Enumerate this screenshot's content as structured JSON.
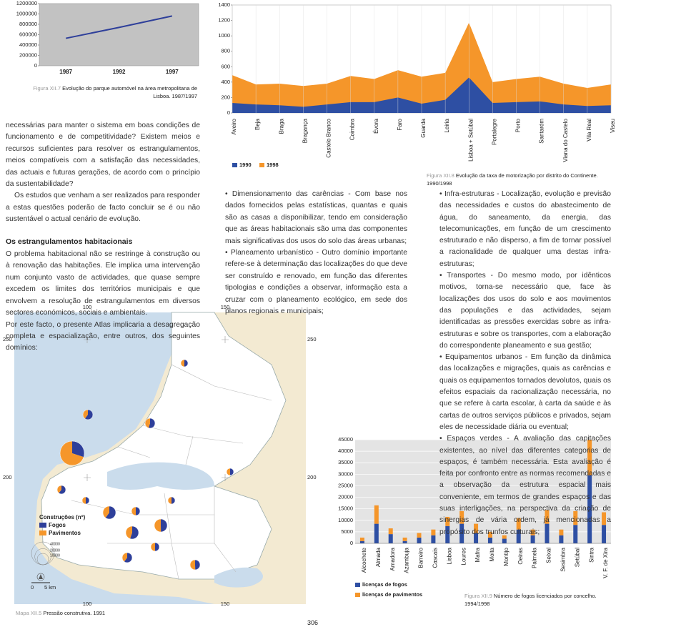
{
  "chart_data": [
    {
      "type": "line",
      "categories": [
        "1987",
        "1992",
        "1997"
      ],
      "series": [
        {
          "color": "#2e3f9a",
          "values": [
            530000,
            740000,
            960000
          ]
        }
      ],
      "ylim": [
        0,
        1200000
      ],
      "yticks": [
        0,
        200000,
        400000,
        600000,
        800000,
        1000000,
        1200000
      ],
      "background": "#c2c2c2",
      "caption": {
        "label": "Figura XII.7",
        "text": "Evolução do parque automóvel na área metropolitana de Lisboa. 1987/1997"
      }
    },
    {
      "type": "area",
      "categories": [
        "Aveiro",
        "Beja",
        "Braga",
        "Bragança",
        "Castelo Branco",
        "Coimbra",
        "Évora",
        "Faro",
        "Guarda",
        "Leiria",
        "Lisboa + Setúbal",
        "Portalegre",
        "Porto",
        "Santarém",
        "Viana do Castelo",
        "Vila Real",
        "Viseu"
      ],
      "series": [
        {
          "name": "1990",
          "color": "#2e4fa3",
          "values": [
            130,
            110,
            100,
            80,
            110,
            140,
            140,
            200,
            120,
            170,
            460,
            130,
            140,
            150,
            110,
            90,
            100
          ]
        },
        {
          "name": "1998",
          "color": "#f5962a",
          "values": [
            490,
            370,
            380,
            350,
            380,
            480,
            440,
            555,
            470,
            520,
            1170,
            400,
            440,
            470,
            380,
            325,
            370
          ]
        }
      ],
      "ylim": [
        0,
        1400
      ],
      "yticks": [
        0,
        200,
        400,
        600,
        800,
        1000,
        1200,
        1400
      ],
      "legend": "bottom-left",
      "caption": {
        "label": "Figura XII.8",
        "text": "Evolução da taxa de motorização por distrito do Continente. 1990/1998"
      }
    },
    {
      "type": "stacked-bar",
      "categories": [
        "Alcochete",
        "Almada",
        "Amadora",
        "Azambuja",
        "Barreiro",
        "Cascais",
        "Lisboa",
        "Loures",
        "Mafra",
        "Moita",
        "Montijo",
        "Oeiras",
        "Palmela",
        "Seixal",
        "Sesimbra",
        "Setúbal",
        "Sintra",
        "V. F. de Xira"
      ],
      "series": [
        {
          "name": "licenças de fogos",
          "color": "#2e4fa3",
          "values": [
            1000,
            8500,
            4000,
            1000,
            2500,
            3500,
            7500,
            8500,
            4500,
            2500,
            2000,
            6000,
            3500,
            8500,
            3500,
            8000,
            29500,
            8000
          ]
        },
        {
          "name": "licenças de pavimentos",
          "color": "#f5962a",
          "values": [
            1500,
            8000,
            2500,
            1500,
            2000,
            2500,
            4000,
            5500,
            4000,
            2500,
            1500,
            5000,
            2500,
            6000,
            2500,
            6000,
            15500,
            5500
          ]
        }
      ],
      "ylim": [
        0,
        45000
      ],
      "yticks": [
        0,
        5000,
        10000,
        15000,
        20000,
        25000,
        30000,
        35000,
        40000,
        45000
      ],
      "grid": true,
      "legend": "bottom-left",
      "caption": {
        "label": "Figura XII.9",
        "text": "Número de fogos licenciados por concelho. 1994/1998"
      }
    }
  ],
  "body": {
    "col1a": [
      "necessárias para manter o sistema em boas condições de funcionamento e de competitividade? Existem meios e recursos suficientes para resolver os estrangulamentos, meios compatíveis com a satisfação das necessidades, das actuais e futuras gerações, de acordo com o princípio da sustentabilidade?",
      "Os estudos que venham a ser realizados para responder a estas questões poderão de facto concluir se é ou não sustentável o actual cenário de evolução."
    ],
    "heading": "Os estrangulamentos habitacionais",
    "col1b": [
      "O problema habitacional não se restringe à construção ou à renovação das habitações. Ele implica uma intervenção num conjunto vasto de actividades, que quase sempre excedem os limites dos territórios municipais e que envolvem a resolução de estrangulamentos em diversos sectores económicos, sociais e ambientais.",
      "Por este facto, o presente Atlas implicaria a desagregação completa e espacialização, entre outros, dos seguintes domínios:"
    ],
    "col2": [
      "• Dimensionamento das carências - Com base nos dados fornecidos pelas estatísticas, quantas e quais são as casas a disponibilizar, tendo em consideração que as áreas habitacionais são uma das componentes mais significativas dos usos do solo das áreas urbanas;",
      "• Planeamento urbanístico - Outro domínio importante refere-se à determinação das localizações do que deve ser construído e renovado, em função das diferentes tipologias e condições a observar, informação esta a cruzar com o planeamento ecológico, em sede dos planos regionais e municipais;"
    ],
    "col3": [
      "• Infra-estruturas - Localização, evolução e previsão das necessidades e custos do abastecimento de água, do saneamento, da energia, das telecomunicações, em função de um crescimento estruturado e não disperso, a fim de tornar possível a racionalidade de qualquer uma destas infra-estruturas;",
      "• Transportes - Do mesmo modo, por idênticos motivos, torna-se necessário que, face às localizações dos usos do solo e aos movimentos das populações e das actividades, sejam identificadas as pressões exercidas sobre as infra-estruturas e sobre os transportes, com a elaboração do correspondente planeamento e sua gestão;",
      "• Equipamentos urbanos - Em função da dinâmica das localizações e migrações, quais as carências e quais os equipamentos tornados devolutos, quais os efeitos espaciais da racionalização necessária, no que se refere à carta escolar, à carta da saúde e às cartas de outros serviços públicos e privados, sejam eles de necessidade diária ou eventual;",
      "• Espaços verdes - A avaliação das capitações existentes, ao nível das diferentes categorias de espaços, é também necessária. Esta avaliação é feita por confronto entre as normas recomendadas e a observação da estrutura espacial mais conveniente, em termos de grandes espaços e das suas interligações, na perspectiva da criação de sinergias de vária ordem, já mencionadas a propósito dos trunfos culturais;"
    ]
  },
  "map": {
    "legend_title": "Construções (nº)",
    "series": [
      {
        "name": "Fogos",
        "color": "#2e3f9a"
      },
      {
        "name": "Pavimentos",
        "color": "#f5962a"
      }
    ],
    "size_legend": [
      40000,
      20000,
      10000
    ],
    "scale": {
      "zero": "0",
      "label": "5 km"
    },
    "grid_labels": [
      "100",
      "150",
      "250",
      "200"
    ],
    "pies": [
      {
        "fogos": 4600,
        "pavimentos": 3050
      },
      {
        "fogos": 4200,
        "pavimentos": 3450
      },
      {
        "fogos": 13500,
        "pavimentos": 31500
      },
      {
        "fogos": 1950,
        "pavimentos": 1950
      },
      {
        "fogos": 1950,
        "pavimentos": 1950
      },
      {
        "fogos": 3400,
        "pavimentos": 2200
      },
      {
        "fogos": 1950,
        "pavimentos": 1950
      },
      {
        "fogos": 7600,
        "pavimentos": 5050
      },
      {
        "fogos": 2800,
        "pavimentos": 2800
      },
      {
        "fogos": 7000,
        "pavimentos": 5650
      },
      {
        "fogos": 6300,
        "pavimentos": 6350
      },
      {
        "fogos": 1950,
        "pavimentos": 1950
      },
      {
        "fogos": 4600,
        "pavimentos": 3050
      },
      {
        "fogos": 2800,
        "pavimentos": 2800
      },
      {
        "fogos": 3800,
        "pavimentos": 3850
      }
    ],
    "caption": {
      "label": "Mapa XII.5",
      "text": "Pressão construtiva. 1991"
    }
  },
  "page_number": "306"
}
